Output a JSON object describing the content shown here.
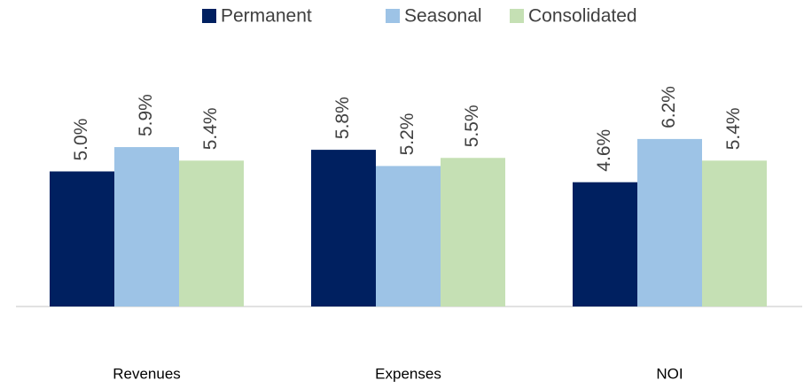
{
  "chart_data": {
    "type": "bar",
    "categories": [
      "Revenues",
      "Expenses",
      "NOI"
    ],
    "series": [
      {
        "name": "Permanent",
        "color": "#002060",
        "values": [
          5.0,
          5.8,
          4.6
        ],
        "value_labels": [
          "5.0%",
          "5.8%",
          "4.6%"
        ]
      },
      {
        "name": "Seasonal",
        "color": "#9dc3e6",
        "values": [
          5.9,
          5.2,
          6.2
        ],
        "value_labels": [
          "5.9%",
          "5.2%",
          "6.2%"
        ]
      },
      {
        "name": "Consolidated",
        "color": "#c5e0b4",
        "values": [
          5.4,
          5.5,
          5.4
        ],
        "value_labels": [
          "5.4%",
          "5.5%",
          "5.4%"
        ]
      }
    ],
    "ylim": [
      0,
      10
    ],
    "legend": "top"
  }
}
